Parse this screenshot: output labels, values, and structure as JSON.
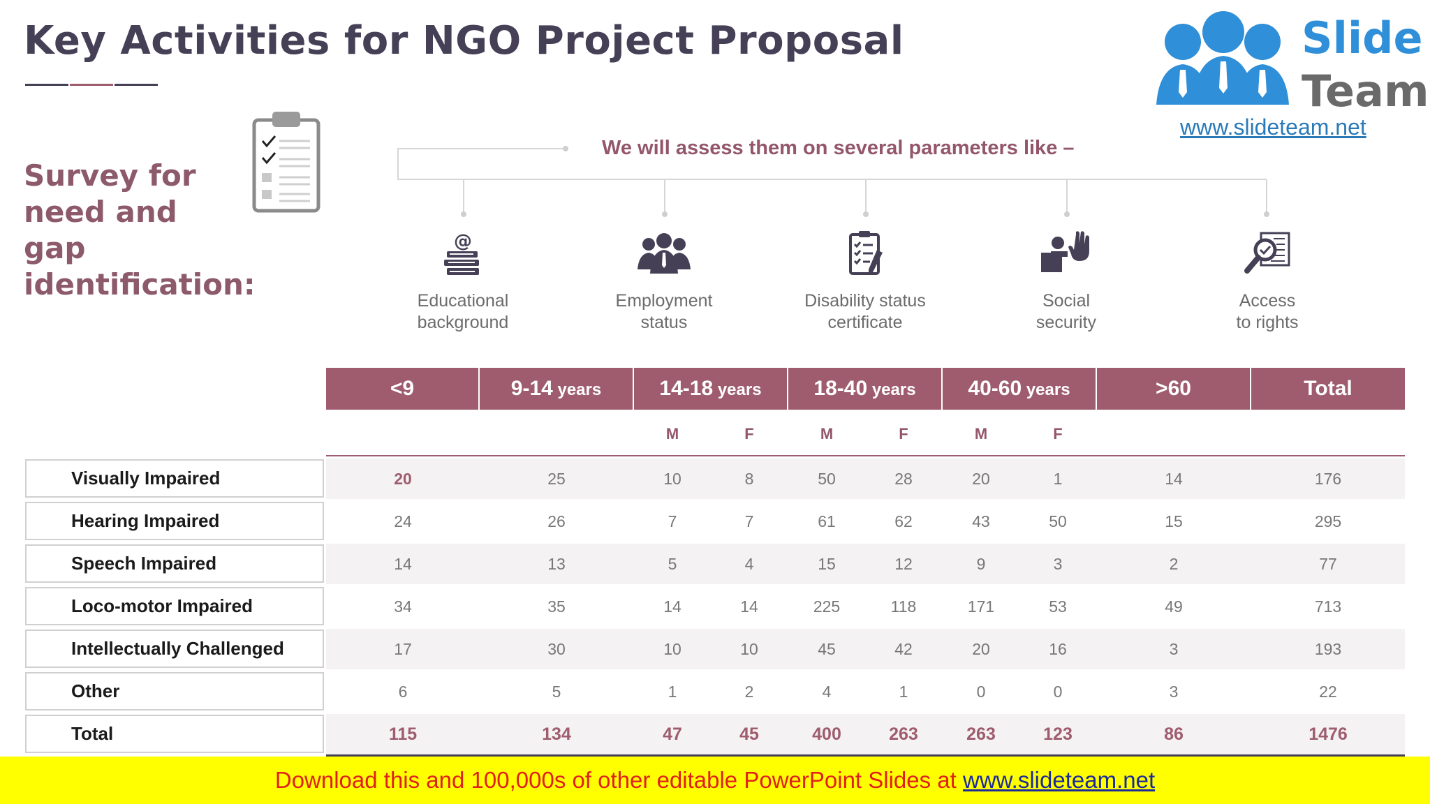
{
  "title": "Key Activities for NGO Project Proposal",
  "colors": {
    "accent": "#9e5c6e",
    "title": "#454056",
    "row_shade": "#f4f2f3",
    "banner_bg": "#ffff00",
    "banner_text": "#e0201c",
    "banner_link": "#1b2a9a",
    "logo_blue": "#2f8fd8",
    "logo_gray": "#6a6a6a"
  },
  "logo": {
    "word1": "Slide",
    "word2": "Team",
    "url": "www.slideteam.net"
  },
  "survey": {
    "heading": "Survey for need and gap identification:",
    "icon": "clipboard-checklist-icon"
  },
  "parameters": {
    "heading": "We will assess them on several parameters like –",
    "items": [
      {
        "label": "Educational\nbackground",
        "icon": "books-email-icon"
      },
      {
        "label": "Employment\nstatus",
        "icon": "people-group-icon"
      },
      {
        "label": "Disability status\ncertificate",
        "icon": "checklist-pencil-icon"
      },
      {
        "label": "Social\nsecurity",
        "icon": "person-hand-icon"
      },
      {
        "label": "Access\nto rights",
        "icon": "magnifier-document-icon"
      }
    ]
  },
  "table": {
    "headers": [
      {
        "main": "<9",
        "suffix": ""
      },
      {
        "main": "9-14",
        "suffix": " years"
      },
      {
        "main": "14-18",
        "suffix": " years"
      },
      {
        "main": "18-40",
        "suffix": " years"
      },
      {
        "main": "40-60",
        "suffix": " years"
      },
      {
        "main": ">60",
        "suffix": ""
      },
      {
        "main": "Total",
        "suffix": ""
      }
    ],
    "subheaders": [
      "M",
      "F",
      "M",
      "F",
      "M",
      "F"
    ],
    "rows": [
      {
        "label": "Visually Impaired",
        "values": [
          "20",
          "25",
          "10",
          "8",
          "50",
          "28",
          "20",
          "1",
          "14",
          "176"
        ]
      },
      {
        "label": "Hearing Impaired",
        "values": [
          "24",
          "26",
          "7",
          "7",
          "61",
          "62",
          "43",
          "50",
          "15",
          "295"
        ]
      },
      {
        "label": "Speech Impaired",
        "values": [
          "14",
          "13",
          "5",
          "4",
          "15",
          "12",
          "9",
          "3",
          "2",
          "77"
        ]
      },
      {
        "label": "Loco-motor Impaired",
        "values": [
          "34",
          "35",
          "14",
          "14",
          "225",
          "118",
          "171",
          "53",
          "49",
          "713"
        ]
      },
      {
        "label": "Intellectually Challenged",
        "values": [
          "17",
          "30",
          "10",
          "10",
          "45",
          "42",
          "20",
          "16",
          "3",
          "193"
        ]
      },
      {
        "label": "Other",
        "values": [
          "6",
          "5",
          "1",
          "2",
          "4",
          "1",
          "0",
          "0",
          "3",
          "22"
        ]
      },
      {
        "label": "Total",
        "values": [
          "115",
          "134",
          "47",
          "45",
          "400",
          "263",
          "263",
          "123",
          "86",
          "1476"
        ]
      }
    ]
  },
  "banner": {
    "text": "Download this and 100,000s of other editable PowerPoint Slides at ",
    "link": "www.slideteam.net"
  }
}
